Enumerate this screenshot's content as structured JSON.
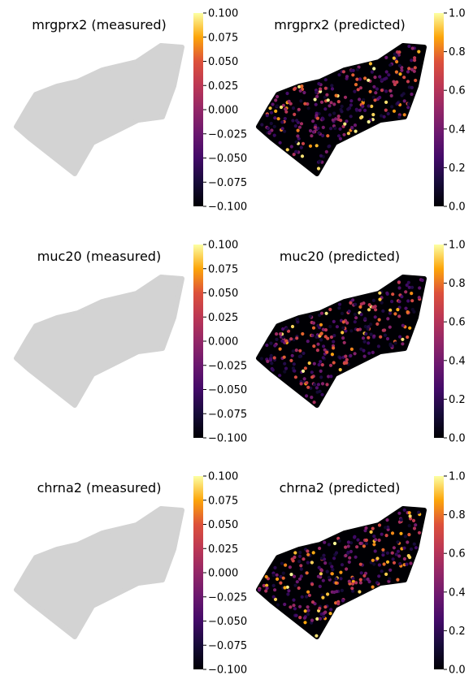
{
  "chart_data": [
    {
      "type": "scatter",
      "title": "mrgprx2 (measured)",
      "mode": "measured",
      "point_color": "#d3d3d3",
      "colorbar": {
        "colormap": "inferno",
        "range": [
          -0.1,
          0.1
        ],
        "ticks": [
          "0.100",
          "0.075",
          "0.050",
          "0.025",
          "0.000",
          "−0.025",
          "−0.050",
          "−0.075",
          "−0.100"
        ]
      }
    },
    {
      "type": "scatter",
      "title": "mrgprx2 (predicted)",
      "mode": "predicted",
      "colorbar": {
        "colormap": "inferno",
        "range": [
          0,
          1
        ],
        "ticks": [
          "1.0",
          "0.8",
          "0.6",
          "0.4",
          "0.2",
          "0.0"
        ]
      }
    },
    {
      "type": "scatter",
      "title": "muc20 (measured)",
      "mode": "measured",
      "point_color": "#d3d3d3",
      "colorbar": {
        "colormap": "inferno",
        "range": [
          -0.1,
          0.1
        ],
        "ticks": [
          "0.100",
          "0.075",
          "0.050",
          "0.025",
          "0.000",
          "−0.025",
          "−0.050",
          "−0.075",
          "−0.100"
        ]
      }
    },
    {
      "type": "scatter",
      "title": "muc20 (predicted)",
      "mode": "predicted",
      "colorbar": {
        "colormap": "inferno",
        "range": [
          0,
          1
        ],
        "ticks": [
          "1.0",
          "0.8",
          "0.6",
          "0.4",
          "0.2",
          "0.0"
        ]
      }
    },
    {
      "type": "scatter",
      "title": "chrna2 (measured)",
      "mode": "measured",
      "point_color": "#d3d3d3",
      "colorbar": {
        "colormap": "inferno",
        "range": [
          -0.1,
          0.1
        ],
        "ticks": [
          "0.100",
          "0.075",
          "0.050",
          "0.025",
          "0.000",
          "−0.025",
          "−0.050",
          "−0.075",
          "−0.100"
        ]
      }
    },
    {
      "type": "scatter",
      "title": "chrna2 (predicted)",
      "mode": "predicted",
      "colorbar": {
        "colormap": "inferno",
        "range": [
          0,
          1
        ],
        "ticks": [
          "1.0",
          "0.8",
          "0.6",
          "0.4",
          "0.2",
          "0.0"
        ]
      }
    }
  ]
}
